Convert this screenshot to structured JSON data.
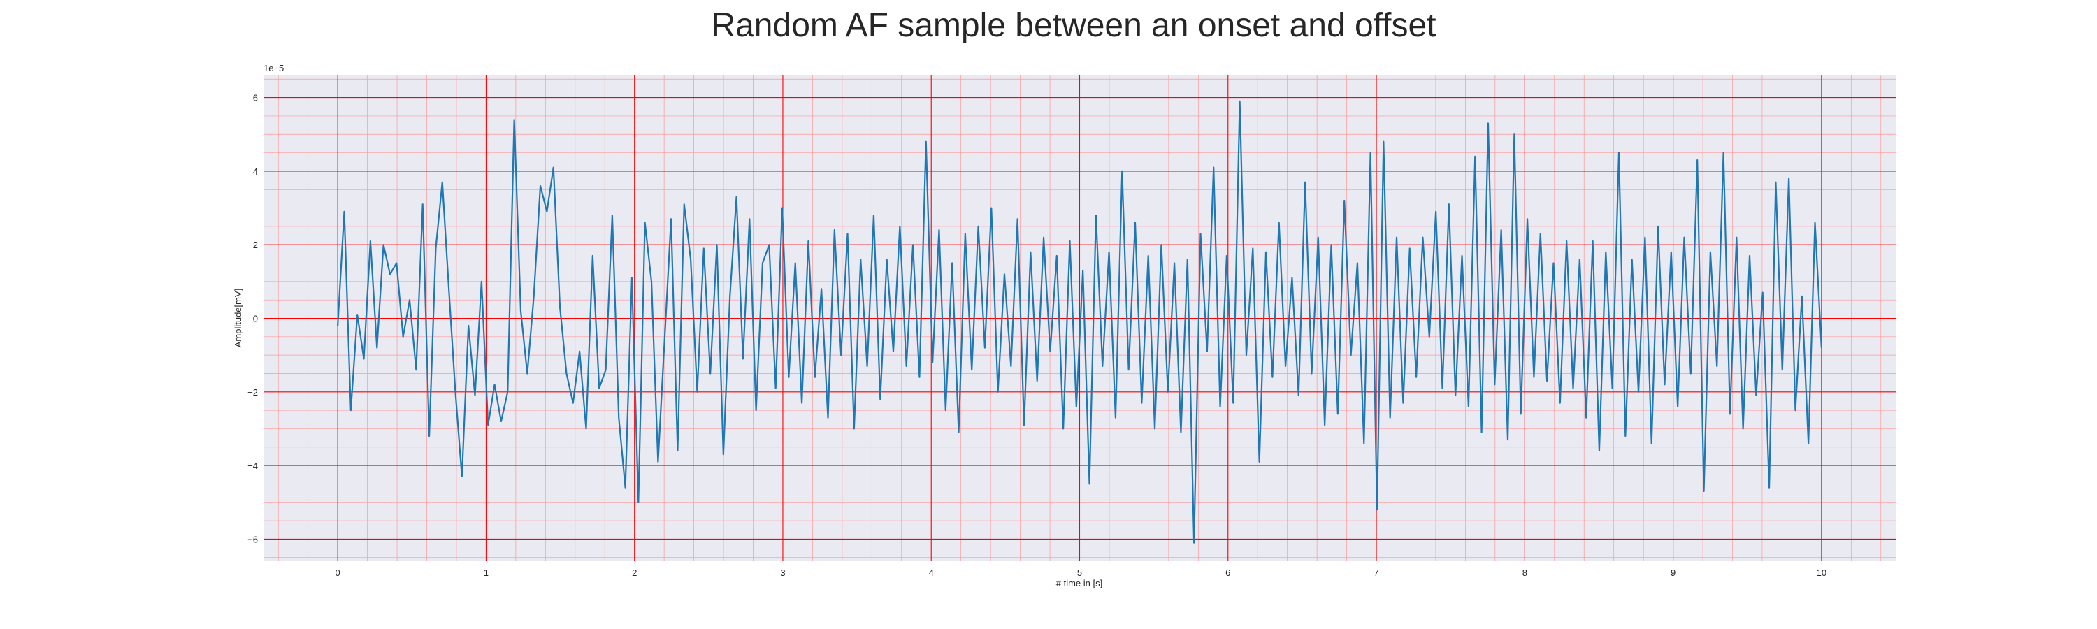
{
  "chart_data": {
    "type": "line",
    "title": "Random AF sample between an onset and offset",
    "xlabel": "# time in [s]",
    "ylabel": "Amplitude[mV]",
    "y_offset_label": "1e−5",
    "y_scale": 1e-05,
    "xlim": [
      -0.5,
      10.5
    ],
    "ylim": [
      -6.6,
      6.6
    ],
    "x_ticks": [
      0,
      1,
      2,
      3,
      4,
      5,
      6,
      7,
      8,
      9,
      10
    ],
    "x_tick_labels": [
      "0",
      "1",
      "2",
      "3",
      "4",
      "5",
      "6",
      "7",
      "8",
      "9",
      "10"
    ],
    "y_ticks": [
      -6,
      -4,
      -2,
      0,
      2,
      4,
      6
    ],
    "y_tick_labels": [
      "−6",
      "−4",
      "−2",
      "0",
      "2",
      "4",
      "6"
    ],
    "grid": {
      "major": true,
      "minor": true,
      "major_color": "#ff0000",
      "minor_color": "#ff9999"
    },
    "colors": {
      "background": "#eaeaf2",
      "line": "#1f77b4"
    },
    "series": [
      {
        "x_start": 0,
        "x_end": 10,
        "values": [
          -0.2,
          2.9,
          -2.5,
          0.1,
          -1.1,
          2.1,
          -0.8,
          2.0,
          1.2,
          1.5,
          -0.5,
          0.5,
          -1.4,
          3.1,
          -3.2,
          1.9,
          3.7,
          0.8,
          -2.0,
          -4.3,
          -0.2,
          -2.1,
          1.0,
          -2.9,
          -1.8,
          -2.8,
          -2.0,
          5.4,
          0.2,
          -1.5,
          0.6,
          3.6,
          2.9,
          4.1,
          0.3,
          -1.5,
          -2.3,
          -0.9,
          -3.0,
          1.7,
          -1.9,
          -1.4,
          2.8,
          -2.7,
          -4.6,
          1.1,
          -5.0,
          2.6,
          1.0,
          -3.9,
          -0.6,
          2.7,
          -3.6,
          3.1,
          1.6,
          -2.0,
          1.9,
          -1.5,
          2.0,
          -3.7,
          0.6,
          3.3,
          -1.1,
          2.7,
          -2.5,
          1.5,
          2.0,
          -1.9,
          3.0,
          -1.6,
          1.5,
          -2.3,
          2.1,
          -1.6,
          0.8,
          -2.7,
          2.4,
          -1.0,
          2.3,
          -3.0,
          1.6,
          -1.3,
          2.8,
          -2.2,
          1.6,
          -0.9,
          2.5,
          -1.3,
          2.0,
          -1.6,
          4.8,
          -1.2,
          2.4,
          -2.5,
          1.5,
          -3.1,
          2.3,
          -1.4,
          2.5,
          -0.8,
          3.0,
          -2.0,
          1.2,
          -1.3,
          2.7,
          -2.9,
          1.8,
          -1.7,
          2.2,
          -0.9,
          1.7,
          -3.0,
          2.1,
          -2.4,
          1.3,
          -4.5,
          2.8,
          -1.3,
          1.8,
          -2.7,
          4.0,
          -1.4,
          2.6,
          -2.3,
          1.7,
          -3.0,
          2.0,
          -2.0,
          1.5,
          -3.1,
          1.6,
          -6.1,
          2.3,
          -0.9,
          4.1,
          -2.4,
          1.7,
          -2.3,
          5.9,
          -1.0,
          1.9,
          -3.9,
          1.8,
          -1.6,
          2.6,
          -1.3,
          1.1,
          -2.1,
          3.7,
          -1.5,
          2.2,
          -2.9,
          2.0,
          -2.6,
          3.2,
          -1.0,
          1.5,
          -3.4,
          4.5,
          -5.2,
          4.8,
          -2.7,
          2.2,
          -2.3,
          1.9,
          -1.6,
          2.2,
          -0.5,
          2.9,
          -1.9,
          3.1,
          -2.1,
          1.7,
          -2.4,
          4.4,
          -3.1,
          5.3,
          -1.8,
          2.4,
          -3.3,
          5.0,
          -2.6,
          2.7,
          -1.6,
          2.3,
          -1.7,
          1.5,
          -2.3,
          2.1,
          -1.9,
          1.6,
          -2.7,
          2.1,
          -3.6,
          1.8,
          -1.9,
          4.5,
          -3.2,
          1.6,
          -2.0,
          2.2,
          -3.4,
          2.5,
          -1.8,
          1.8,
          -2.4,
          2.2,
          -1.5,
          4.3,
          -4.7,
          1.8,
          -1.3,
          4.5,
          -2.6,
          2.2,
          -3.0,
          1.7,
          -2.1,
          0.7,
          -4.6,
          3.7,
          -1.4,
          3.8,
          -2.5,
          0.6,
          -3.4,
          2.6,
          -0.8
        ]
      }
    ]
  }
}
